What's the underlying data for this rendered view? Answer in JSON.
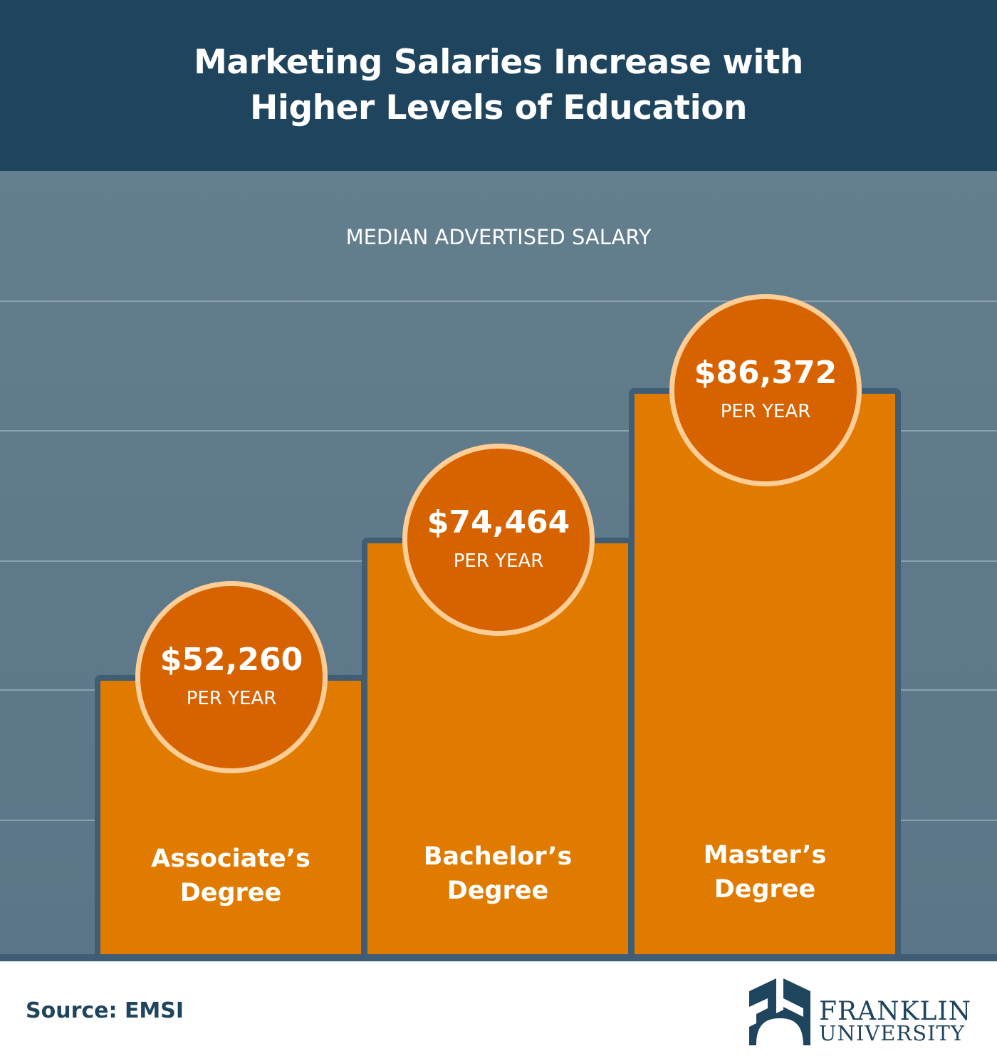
{
  "chart_data": {
    "type": "bar",
    "title": "Marketing Salaries Increase with Higher Levels of Education",
    "subtitle": "MEDIAN ADVERTISED SALARY",
    "categories": [
      "Associate’s Degree",
      "Bachelor’s Degree",
      "Master’s Degree"
    ],
    "values": [
      52260,
      74464,
      86372
    ],
    "value_labels": [
      "$52,260",
      "$74,464",
      "$86,372"
    ],
    "unit_label": "PER YEAR",
    "grid": true
  },
  "header": {
    "line1": "Marketing Salaries Increase with",
    "line2": "Higher Levels of Education"
  },
  "bars": [
    {
      "line1": "Associate’s",
      "line2": "Degree",
      "value": "$52,260",
      "per": "PER YEAR"
    },
    {
      "line1": "Bachelor’s",
      "line2": "Degree",
      "value": "$74,464",
      "per": "PER YEAR"
    },
    {
      "line1": "Master’s",
      "line2": "Degree",
      "value": "$86,372",
      "per": "PER YEAR"
    }
  ],
  "footer": {
    "source": "Source: EMSI",
    "logo_line1": "FRANKLIN",
    "logo_line2": "UNIVERSITY"
  },
  "colors": {
    "header": "#1f445d",
    "bar": "#e07b00",
    "circle": "#d66200",
    "ring": "#ffce96"
  }
}
